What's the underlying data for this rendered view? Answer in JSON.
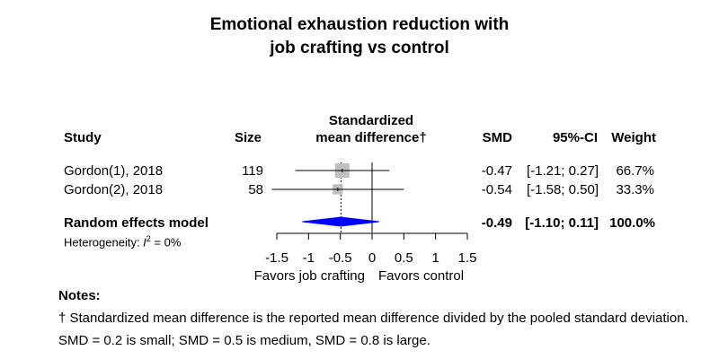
{
  "chart_data": {
    "type": "forest",
    "title": [
      "Emotional exhaustion reduction with",
      "job crafting vs control"
    ],
    "columns": {
      "study": "Study",
      "size": "Size",
      "effect": [
        "Standardized",
        "mean difference†"
      ],
      "smd": "SMD",
      "ci": "95%-CI",
      "weight": "Weight"
    },
    "studies": [
      {
        "name": "Gordon(1), 2018",
        "size": "119",
        "smd": -0.47,
        "lower": -1.21,
        "upper": 0.27,
        "smd_label": "-0.47",
        "ci_label": "[-1.21; 0.27]",
        "weight_label": "66.7%",
        "weight": 66.7
      },
      {
        "name": "Gordon(2), 2018",
        "size": "58",
        "smd": -0.54,
        "lower": -1.58,
        "upper": 0.5,
        "smd_label": "-0.54",
        "ci_label": "[-1.58; 0.50]",
        "weight_label": "33.3%",
        "weight": 33.3
      }
    ],
    "pooled": {
      "name": "Random effects model",
      "smd": -0.49,
      "lower": -1.1,
      "upper": 0.11,
      "smd_label": "-0.49",
      "ci_label": "[-1.10; 0.11]",
      "weight_label": "100.0%"
    },
    "heterogeneity": {
      "prefix": "Heterogeneity: ",
      "stat": "I",
      "sup": "2",
      "suffix": " = 0%"
    },
    "xlim": [
      -1.5,
      1.5
    ],
    "ticks": [
      {
        "value": -1.5,
        "label": "-1.5"
      },
      {
        "value": -1,
        "label": "-1"
      },
      {
        "value": -0.5,
        "label": "-0.5"
      },
      {
        "value": 0,
        "label": "0"
      },
      {
        "value": 0.5,
        "label": "0.5"
      },
      {
        "value": 1,
        "label": "1"
      },
      {
        "value": 1.5,
        "label": "1.5"
      }
    ],
    "favors_left": "Favors job crafting",
    "favors_right": "Favors control",
    "colors": {
      "square": "#bfbfbf",
      "diamond": "#0000ff",
      "line": "#000000"
    }
  },
  "notes": {
    "heading": "Notes:",
    "line1": "† Standardized mean difference is the reported mean difference divided by the pooled standard deviation.",
    "line2": "SMD = 0.2 is small; SMD = 0.5 is medium, SMD = 0.8 is large."
  }
}
